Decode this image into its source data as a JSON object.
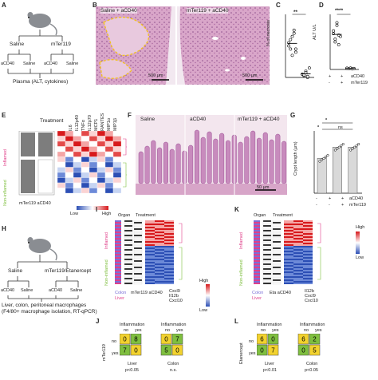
{
  "panels": {
    "A": {
      "letter": "A",
      "groups": [
        "Saline",
        "mTer119"
      ],
      "subgroups": [
        "aCD40",
        "Saline",
        "aCD40",
        "Saline"
      ],
      "note": "Plasma (ALT, cytokines)"
    },
    "B": {
      "letter": "B",
      "labels": [
        "Saline + aCD40",
        "mTer119 + aCD40"
      ],
      "scalebars": [
        "500 µm",
        "500 µm"
      ]
    },
    "C": {
      "letter": "C",
      "ylabel": "% of necrosis",
      "sig": "**"
    },
    "D": {
      "letter": "D",
      "ylabel": "ALT U/L",
      "sig": "****",
      "legend_rows": [
        "aCD40",
        "mTer119"
      ],
      "row1": [
        "+",
        "+"
      ],
      "row2": [
        "-",
        "+"
      ]
    },
    "E": {
      "letter": "E",
      "header": "Treatment",
      "cytokines": [
        "IL6",
        "IL12p40",
        "TNFα",
        "IL12p70",
        "MCP1",
        "RANTES",
        "MIP1α",
        "MIP1β"
      ],
      "row_inflamed": "Inflamed",
      "row_noninflamed": "Non-inflamed",
      "legend_low": "Low",
      "legend_high": "High",
      "group_labels": "mTer119 aCD40"
    },
    "F": {
      "letter": "F",
      "labels": [
        "Saline",
        "aCD40",
        "mTer119 + aCD40"
      ],
      "scalebar": "50 µm"
    },
    "G": {
      "letter": "G",
      "ylabel": "Crypt length (µm)",
      "sig": [
        "*",
        "*",
        "ns"
      ],
      "legend_rows": [
        "aCD40",
        "mTer119"
      ],
      "row1": [
        "-",
        "+",
        "+"
      ],
      "row2": [
        "-",
        "-",
        "+"
      ]
    },
    "H": {
      "letter": "H",
      "groups": [
        "Saline",
        "mTer119/Etanercept"
      ],
      "subgroups": [
        "aCD40",
        "Saline",
        "aCD40",
        "Saline"
      ],
      "note": "Liver, colon, peritoneal macrophages (F4/80+ macrophage isolation, RT-qPCR)"
    },
    "I": {
      "letter": "I",
      "headers": [
        "Organ",
        "Treatment"
      ],
      "genes": [
        "Cxcl9",
        "Il12b",
        "Cxcl10"
      ],
      "organs": [
        "Colon",
        "Liver"
      ],
      "groups": "mTer119 aCD40",
      "row_inflamed": "Inflamed",
      "row_noninflamed": "Non-inflamed",
      "legend_high": "High",
      "legend_low": "Low"
    },
    "J": {
      "letter": "J",
      "title": "Inflammation",
      "side": "mTer119",
      "col_labels": [
        "no",
        "yes"
      ],
      "row_labels": [
        "no",
        "yes"
      ],
      "tables": [
        {
          "cells": [
            "0",
            "8",
            "7",
            "0"
          ],
          "organ": "Liver",
          "p": "p<0.05"
        },
        {
          "cells": [
            "0",
            "7",
            "5",
            "0"
          ],
          "organ": "Colon",
          "p": "n.s."
        }
      ]
    },
    "K": {
      "letter": "K",
      "headers": [
        "Organ",
        "Treatment"
      ],
      "genes": [
        "Il12b",
        "Cxcl9",
        "Cxcl10"
      ],
      "organs": [
        "Colon",
        "Liver"
      ],
      "groups": "Eta aCD40",
      "row_inflamed": "Inflamed",
      "row_noninflamed": "Non-inflamed",
      "legend_high": "High",
      "legend_low": "Low"
    },
    "L": {
      "letter": "L",
      "title": "Inflammation",
      "side": "Etanercept",
      "col_labels": [
        "no",
        "yes"
      ],
      "row_labels": [
        "no",
        "yes"
      ],
      "tables": [
        {
          "cells": [
            "6",
            "0",
            "0",
            "7"
          ],
          "organ": "Liver",
          "p": "p<0.01"
        },
        {
          "cells": [
            "6",
            "2",
            "0",
            "5"
          ],
          "organ": "Colon",
          "p": "p<0.05"
        }
      ]
    }
  },
  "colors": {
    "accent_yellow": "#f2d22e",
    "green": "#7fbf3f",
    "inflamed": "#e0408a",
    "noninflamed": "#8fd14a",
    "heat_high": "#d7191c",
    "heat_low": "#2c4fb5"
  },
  "chart_data": [
    {
      "type": "scatter",
      "panel": "C",
      "ylabel": "% of necrosis",
      "categories": [
        "Saline + aCD40",
        "mTer119 + aCD40"
      ],
      "ylim": [
        0,
        20
      ],
      "series": [
        {
          "values": [
            11,
            9,
            13,
            15,
            8,
            10,
            12,
            7,
            14,
            9
          ]
        },
        {
          "values": [
            1,
            0.5,
            2,
            0,
            3,
            1,
            0.8,
            1.5,
            0.3
          ]
        }
      ]
    },
    {
      "type": "scatter",
      "panel": "D",
      "ylabel": "ALT U/L",
      "categories": [
        "Saline + aCD40",
        "mTer119 + aCD40"
      ],
      "ylim": [
        0,
        2000
      ],
      "series": [
        {
          "values": [
            1300,
            1100,
            1600,
            900,
            1200,
            1400,
            1000,
            1700,
            1250
          ]
        },
        {
          "values": [
            40,
            30,
            50,
            20,
            35,
            45
          ]
        }
      ]
    },
    {
      "type": "bar",
      "panel": "G",
      "ylabel": "Crypt length (µm)",
      "categories": [
        "-/-",
        "+/-",
        "+/+"
      ],
      "ylim": [
        0,
        250
      ],
      "values": [
        140,
        185,
        185
      ]
    }
  ]
}
